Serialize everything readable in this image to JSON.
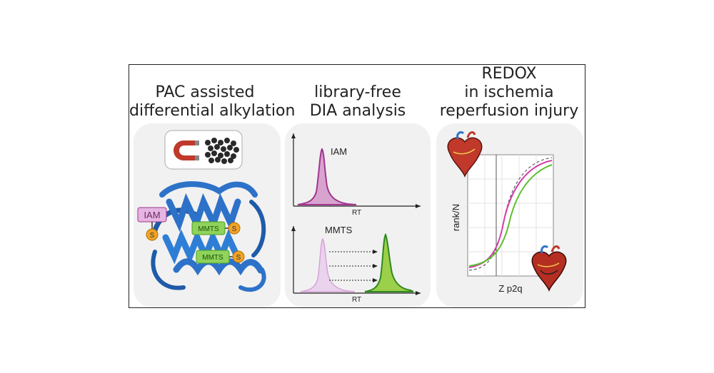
{
  "panels": {
    "p1": {
      "title_line1": "PAC assisted",
      "title_line2": "differential alkylation",
      "iam": "IAM",
      "s": "S",
      "mmts": "MMTS"
    },
    "p2": {
      "title_line1": "library-free",
      "title_line2": "DIA analysis",
      "iam": "IAM",
      "mmts": "MMTS",
      "rt": "RT"
    },
    "p3": {
      "title_line1": "REDOX",
      "title_line2": "in ischemia",
      "title_line3": "reperfusion injury",
      "ylabel": "rank/N",
      "xlabel": "Z p2q"
    }
  },
  "colors": {
    "purple": "#a0388f",
    "purple_fill": "#d9a3cf",
    "light_purple_fill": "#ead3ec",
    "green": "#4a9e2a",
    "green_fill": "#9ccf4a",
    "pink": "#d23fa8",
    "protein_blue": "#2d72c8",
    "magnet_red": "#c0392b",
    "label_purple_bg": "#e6b5e3",
    "label_green_bg": "#8fd35a",
    "sulfur_orange": "#f2a428"
  }
}
